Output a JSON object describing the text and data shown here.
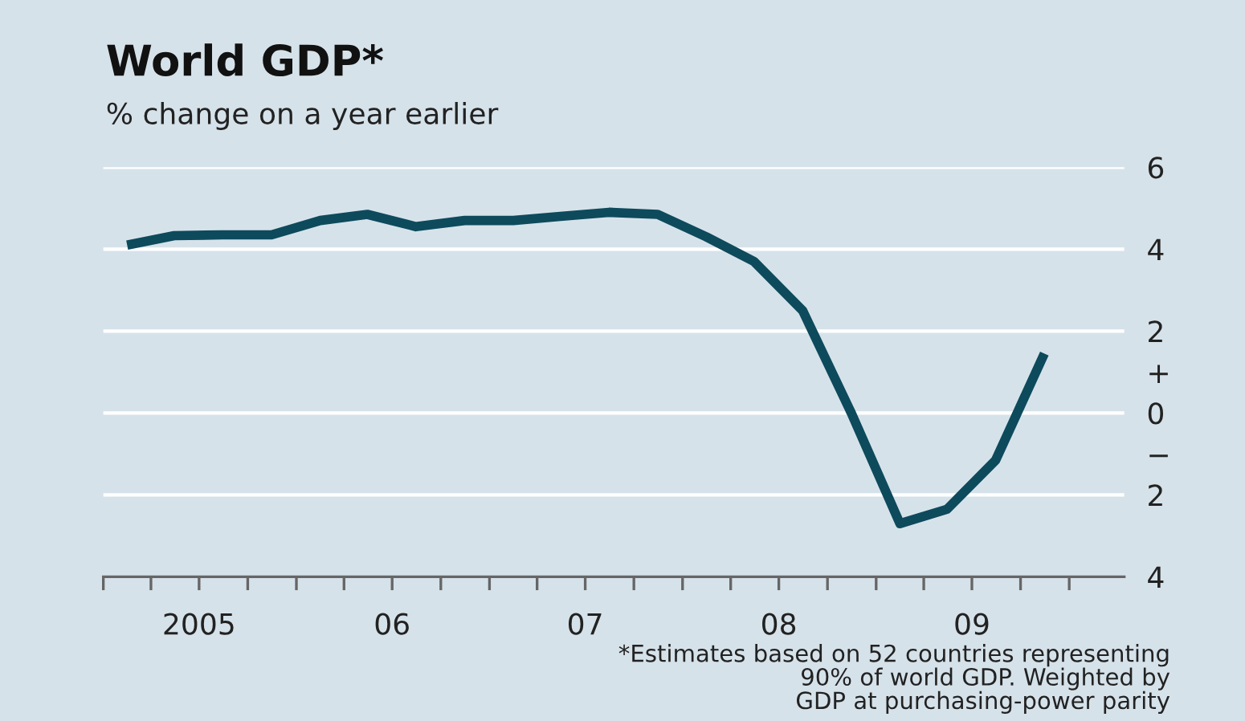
{
  "chart_data": {
    "type": "line",
    "title": "World GDP*",
    "subtitle": "% change on a year earlier",
    "annotations": [
      "*Estimates based on 52 countries representing\n90% of world GDP. Weighted by\nGDP at purchasing-power parity"
    ],
    "x": [
      "2005-02-15",
      "2005-05-15",
      "2005-08-15",
      "2005-11-15",
      "2006-02-15",
      "2006-05-15",
      "2006-08-15",
      "2006-11-15",
      "2007-02-15",
      "2007-05-15",
      "2007-08-15",
      "2007-11-15",
      "2008-02-15",
      "2008-05-15",
      "2008-08-15",
      "2008-11-15",
      "2009-02-15",
      "2009-05-15",
      "2009-08-15",
      "2009-11-15"
    ],
    "series": [
      {
        "color": "#0d4a5c",
        "values": [
          4.1,
          4.33,
          4.35,
          4.35,
          4.7,
          4.85,
          4.55,
          4.7,
          4.7,
          4.8,
          4.9,
          4.85,
          4.3,
          3.7,
          2.5,
          0,
          -2.7,
          -2.35,
          -1.15,
          1.45
        ]
      }
    ],
    "xlim": [
      "2005-01-01",
      "2010-04-15"
    ],
    "xticks": [
      {
        "value": "2005-01",
        "label": null
      },
      {
        "value": "2005-04",
        "label": null
      },
      {
        "value": "2005-07",
        "label": "2005"
      },
      {
        "value": "2005-10",
        "label": null
      },
      {
        "value": "2006-01",
        "label": null
      },
      {
        "value": "2006-04",
        "label": null
      },
      {
        "value": "2006-07",
        "label": "06"
      },
      {
        "value": "2006-10",
        "label": null
      },
      {
        "value": "2007-01",
        "label": null
      },
      {
        "value": "2007-04",
        "label": null
      },
      {
        "value": "2007-07",
        "label": "07"
      },
      {
        "value": "2007-10",
        "label": null
      },
      {
        "value": "2008-01",
        "label": null
      },
      {
        "value": "2008-04",
        "label": null
      },
      {
        "value": "2008-07",
        "label": "08"
      },
      {
        "value": "2008-10",
        "label": null
      },
      {
        "value": "2009-01",
        "label": null
      },
      {
        "value": "2009-04",
        "label": null
      },
      {
        "value": "2009-07",
        "label": "09"
      },
      {
        "value": "2009-10",
        "label": null
      },
      {
        "value": "2010-01",
        "label": null
      }
    ],
    "ylim": [
      -4,
      6
    ],
    "yticks": [
      {
        "value": -4,
        "label": "4"
      },
      {
        "value": -2,
        "label": "2"
      },
      {
        "value": -1,
        "label": "−"
      },
      0,
      {
        "value": 1,
        "label": "+"
      },
      2,
      4,
      6
    ],
    "grid": "y",
    "legend": false,
    "marker": "none",
    "line_style": "solid"
  }
}
